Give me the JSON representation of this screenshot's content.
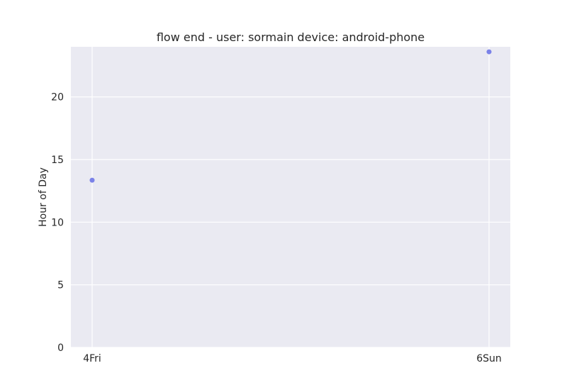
{
  "chart_data": {
    "type": "scatter",
    "title": "flow end - user: sormain device: android-phone",
    "xlabel": "",
    "ylabel": "Hour of Day",
    "x_categories": [
      "4Fri",
      "6Sun"
    ],
    "points": [
      {
        "x": "4Fri",
        "y": 13.35
      },
      {
        "x": "6Sun",
        "y": 23.6
      }
    ],
    "ylim": [
      0,
      24
    ],
    "yticks": [
      0,
      5,
      10,
      15,
      20
    ],
    "grid": true,
    "background": "#eaeaf2",
    "grid_color": "#ffffff",
    "point_color": "#7b82e8"
  }
}
